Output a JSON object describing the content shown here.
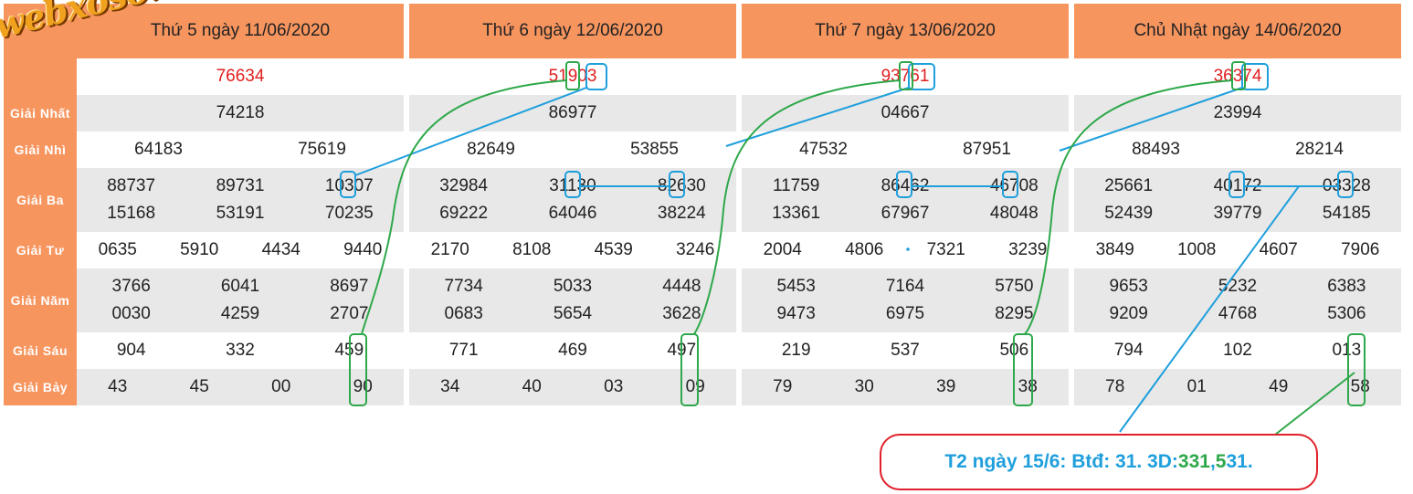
{
  "watermark": "webxoso.net",
  "prize_labels": [
    "Giải Nhất",
    "Giải Nhì",
    "Giải Ba",
    "Giải Tư",
    "Giải Năm",
    "Giải Sáu",
    "Giải Bảy"
  ],
  "days": [
    {
      "title": "Thứ 5 ngày 11/06/2020",
      "db": "76634",
      "g1": "74218",
      "g2": [
        "64183",
        "75619"
      ],
      "g3": [
        "88737",
        "89731",
        "10307",
        "15168",
        "53191",
        "70235"
      ],
      "g4": [
        "0635",
        "5910",
        "4434",
        "9440"
      ],
      "g5": [
        "3766",
        "6041",
        "8697",
        "0030",
        "4259",
        "2707"
      ],
      "g6": [
        "904",
        "332",
        "459"
      ],
      "g7": [
        "43",
        "45",
        "00",
        "90"
      ]
    },
    {
      "title": "Thứ 6 ngày 12/06/2020",
      "db": "51903",
      "g1": "86977",
      "g2": [
        "82649",
        "53855"
      ],
      "g3": [
        "32984",
        "31130",
        "82630",
        "69222",
        "64046",
        "38224"
      ],
      "g4": [
        "2170",
        "8108",
        "4539",
        "3246"
      ],
      "g5": [
        "7734",
        "5033",
        "4448",
        "0683",
        "5654",
        "3628"
      ],
      "g6": [
        "771",
        "469",
        "497"
      ],
      "g7": [
        "34",
        "40",
        "03",
        "09"
      ]
    },
    {
      "title": "Thứ 7 ngày 13/06/2020",
      "db": "93761",
      "g1": "04667",
      "g2": [
        "47532",
        "87951"
      ],
      "g3": [
        "11759",
        "86462",
        "46708",
        "13361",
        "67967",
        "48048"
      ],
      "g4": [
        "2004",
        "4806",
        "7321",
        "3239"
      ],
      "g5": [
        "5453",
        "7164",
        "5750",
        "9473",
        "6975",
        "8295"
      ],
      "g6": [
        "219",
        "537",
        "506"
      ],
      "g7": [
        "79",
        "30",
        "39",
        "38"
      ]
    },
    {
      "title": "Chủ Nhật ngày 14/06/2020",
      "db": "36374",
      "g1": "23994",
      "g2": [
        "88493",
        "28214"
      ],
      "g3": [
        "25661",
        "40172",
        "03328",
        "52439",
        "39779",
        "54185"
      ],
      "g4": [
        "3849",
        "1008",
        "4607",
        "7906"
      ],
      "g5": [
        "9653",
        "5232",
        "6383",
        "9209",
        "4768",
        "5306"
      ],
      "g6": [
        "794",
        "102",
        "013"
      ],
      "g7": [
        "78",
        "01",
        "49",
        "58"
      ]
    }
  ],
  "callout": {
    "prefix": "T2 ngày 15/6: Btđ: 31. 3D: ",
    "num1": "331",
    "sep": ",",
    "num2_green": "5",
    "num2_rest": "31",
    "suffix": "."
  },
  "colors": {
    "header_bg": "#f7955f",
    "special_prize": "#e02020",
    "stripe": "#e8e8e8",
    "blue_line": "#1f9fdc",
    "green_line": "#2ea84a",
    "callout_border": "#e0202a"
  }
}
